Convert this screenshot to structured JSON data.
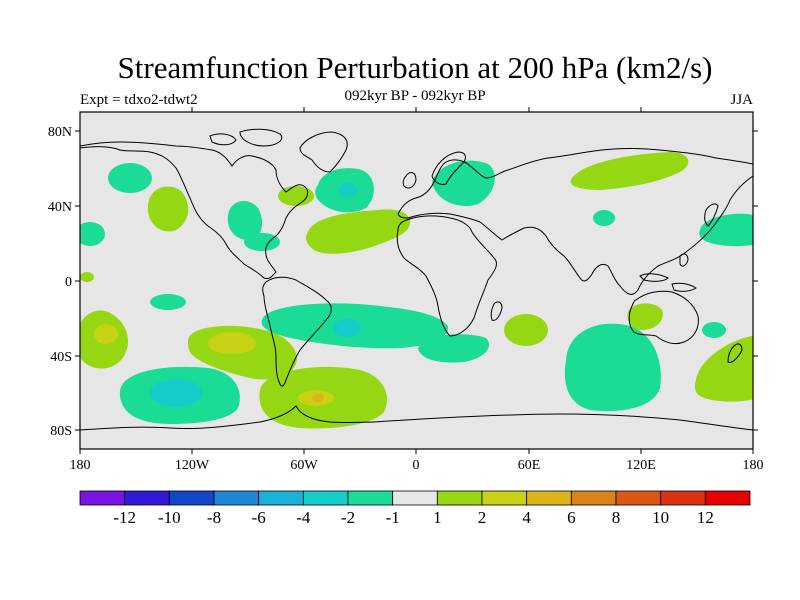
{
  "header": {
    "title": "Streamfunction Perturbation at 200 hPa (km2/s)",
    "experiment": "Expt = tdxo2-tdwt2",
    "period": "092kyr BP - 092kyr BP",
    "season": "JJA"
  },
  "map": {
    "projection": "cylindrical equidistant",
    "lon_range": [
      -180,
      180
    ],
    "lat_range": [
      -90,
      90
    ],
    "lat_ticks": [
      "80N",
      "40N",
      "0",
      "40S",
      "80S"
    ],
    "lon_ticks": [
      "180",
      "120W",
      "60W",
      "0",
      "60E",
      "120E",
      "180"
    ],
    "background_color": "#e6e6e6"
  },
  "colorbar": {
    "labels": [
      "-12",
      "-10",
      "-8",
      "-6",
      "-4",
      "-2",
      "-1",
      "1",
      "2",
      "4",
      "6",
      "8",
      "10",
      "12"
    ],
    "colors": [
      "#7b14e0",
      "#3319d6",
      "#1446cc",
      "#1f87d6",
      "#1ab2d6",
      "#14ccc8",
      "#1adc96",
      "#e6e6e6",
      "#96d714",
      "#c8d214",
      "#dcb41a",
      "#dc821a",
      "#dc5614",
      "#dc3214",
      "#e60000"
    ]
  }
}
